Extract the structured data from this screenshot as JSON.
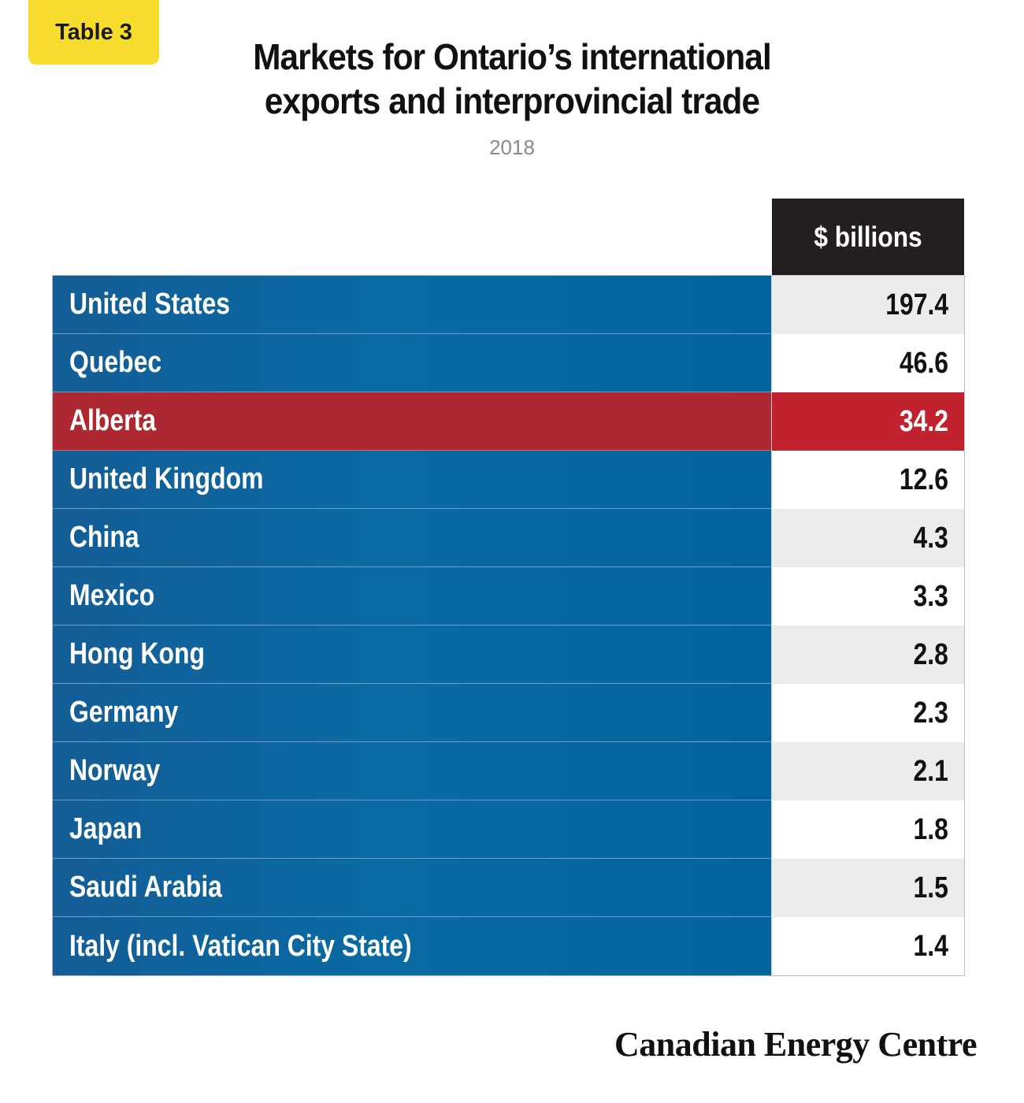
{
  "tag_label": "Table 3",
  "title_line1": "Markets for Ontario’s international",
  "title_line2": "exports and interprovincial trade",
  "subtitle": "2018",
  "column_header": "$ billions",
  "highlight_color": "#c0222e",
  "row_color": "#0a6aa3",
  "chart_data": {
    "type": "table",
    "title": "Markets for Ontario’s international exports and interprovincial trade",
    "subtitle": "2018",
    "columns": [
      "",
      "$ billions"
    ],
    "highlighted": "Alberta",
    "rows": [
      {
        "label": "United States",
        "value": "197.4"
      },
      {
        "label": "Quebec",
        "value": "46.6"
      },
      {
        "label": "Alberta",
        "value": "34.2"
      },
      {
        "label": "United Kingdom",
        "value": "12.6"
      },
      {
        "label": "China",
        "value": "4.3"
      },
      {
        "label": "Mexico",
        "value": "3.3"
      },
      {
        "label": "Hong Kong",
        "value": "2.8"
      },
      {
        "label": "Germany",
        "value": "2.3"
      },
      {
        "label": "Norway",
        "value": "2.1"
      },
      {
        "label": "Japan",
        "value": "1.8"
      },
      {
        "label": "Saudi Arabia",
        "value": "1.5"
      },
      {
        "label": "Italy (incl. Vatican City State)",
        "value": "1.4"
      }
    ]
  },
  "source": "Canadian Energy Centre"
}
